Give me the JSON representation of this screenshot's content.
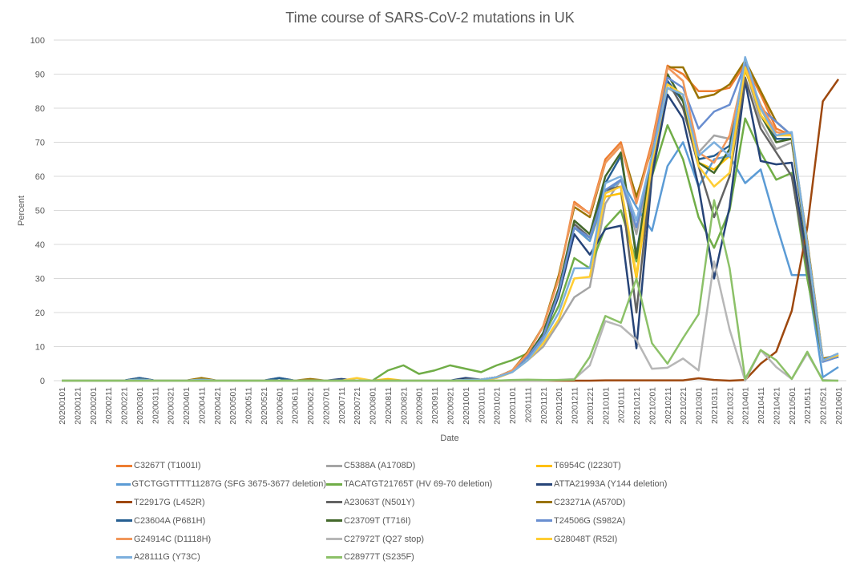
{
  "chart_data": {
    "type": "line",
    "title": "Time course of SARS-CoV-2 mutations in UK",
    "xlabel": "Date",
    "ylabel": "Percent",
    "ylim": [
      0,
      100
    ],
    "yticks": [
      0,
      10,
      20,
      30,
      40,
      50,
      60,
      70,
      80,
      90,
      100
    ],
    "grid": true,
    "legend": "bottom",
    "categories": [
      "20200101",
      "20200121",
      "20200201",
      "20200211",
      "20200221",
      "20200301",
      "20200311",
      "20200321",
      "20200401",
      "20200411",
      "20200421",
      "20200501",
      "20200511",
      "20200521",
      "20200601",
      "20200611",
      "20200621",
      "20200701",
      "20200711",
      "20200721",
      "20200801",
      "20200811",
      "20200821",
      "20200901",
      "20200911",
      "20200921",
      "20201001",
      "20201011",
      "20201021",
      "20201101",
      "20201111",
      "20201121",
      "20201201",
      "20201211",
      "20201221",
      "20210101",
      "20210111",
      "20210121",
      "20210201",
      "20210211",
      "20210221",
      "20210301",
      "20210311",
      "20210321",
      "20210401",
      "20210411",
      "20210421",
      "20210501",
      "20210511",
      "20210521",
      "20210601"
    ],
    "series": [
      {
        "name": "C3267T (T1001I)",
        "color": "#ED7D31",
        "values": [
          0,
          0,
          0,
          0,
          0,
          0.5,
          0,
          0,
          0,
          0.3,
          0,
          0,
          0,
          0,
          0,
          0,
          0,
          0,
          0,
          0,
          0,
          0,
          0,
          0,
          0,
          0,
          0.2,
          0.3,
          1,
          3,
          8,
          16,
          30,
          52.5,
          49,
          65,
          70,
          53,
          70,
          92.5,
          90,
          85,
          85,
          86,
          93,
          84,
          74,
          72,
          40,
          6,
          7.5
        ]
      },
      {
        "name": "C5388A (A1708D)",
        "color": "#A5A5A5",
        "values": [
          0,
          0,
          0,
          0,
          0,
          0.5,
          0,
          0,
          0,
          0.3,
          0,
          0,
          0,
          0,
          0,
          0,
          0,
          0,
          0,
          0,
          0,
          0,
          0,
          0,
          0,
          0,
          0.2,
          0.3,
          0.8,
          2.5,
          6,
          10,
          17,
          24.5,
          27.5,
          52,
          59,
          43,
          65,
          86,
          83,
          67,
          72,
          71,
          92,
          76,
          68,
          70,
          38,
          6,
          8
        ]
      },
      {
        "name": "T6954C (I2230T)",
        "color": "#FFC000",
        "values": [
          0,
          0,
          0,
          0,
          0,
          0.5,
          0,
          0,
          0,
          0.3,
          0,
          0,
          0,
          0,
          0,
          0,
          0,
          0,
          0,
          0,
          0,
          0.5,
          0,
          0,
          0,
          0,
          0.2,
          0.3,
          1,
          3,
          7,
          14,
          27,
          45,
          41,
          54,
          55,
          30,
          62,
          86,
          84,
          64,
          62,
          66,
          91,
          80,
          71,
          71,
          39,
          6,
          7.5
        ]
      },
      {
        "name": "GTCTGGTTTT11287G (SFG 3675-3677 deletion)",
        "color": "#5B9BD5",
        "values": [
          0,
          0,
          0,
          0,
          0,
          0.5,
          0,
          0,
          0,
          0.3,
          0,
          0,
          0,
          0,
          0,
          0,
          0,
          0,
          0,
          0,
          0,
          0,
          0,
          0,
          0,
          0,
          0.2,
          0.3,
          1,
          2.5,
          6,
          13,
          25,
          45,
          41,
          55,
          59,
          51,
          44,
          63,
          70,
          57,
          65,
          66,
          58,
          62,
          46,
          31,
          31,
          1,
          4
        ]
      },
      {
        "name": "TACATGT21765T (HV 69-70 deletion)",
        "color": "#70AD47",
        "values": [
          0,
          0,
          0,
          0,
          0,
          0,
          0,
          0,
          0,
          0,
          0,
          0,
          0,
          0,
          0,
          0,
          0,
          0,
          0,
          0,
          0,
          3,
          4.5,
          2,
          3,
          4.5,
          3.5,
          2.5,
          4.5,
          6,
          8,
          13,
          22,
          36,
          33,
          45,
          50,
          35,
          60,
          75,
          65,
          48,
          39,
          50,
          77,
          67,
          59,
          61,
          30,
          6,
          7
        ]
      },
      {
        "name": "ATTA21993A (Y144 deletion)",
        "color": "#264478",
        "values": [
          0,
          0,
          0,
          0,
          0,
          0.8,
          0,
          0,
          0,
          0.3,
          0,
          0,
          0,
          0,
          0.8,
          0,
          0,
          0,
          0.5,
          0,
          0,
          0,
          0,
          0,
          0,
          0,
          0.8,
          0.3,
          1,
          3,
          7,
          13,
          25,
          43,
          37,
          44.5,
          45.5,
          9.5,
          60,
          84,
          77,
          57,
          30,
          51,
          88,
          64.5,
          63.5,
          64,
          35,
          6,
          7
        ]
      },
      {
        "name": "T22917G (L452R)",
        "color": "#9E480E",
        "values": [
          0,
          0,
          0,
          0,
          0,
          0,
          0,
          0,
          0,
          0,
          0,
          0,
          0,
          0,
          0,
          0,
          0,
          0,
          0,
          0,
          0,
          0,
          0,
          0,
          0,
          0,
          0,
          0,
          0,
          0,
          0,
          0,
          0,
          0,
          0,
          0.1,
          0.1,
          0.1,
          0.1,
          0.1,
          0.1,
          0.7,
          0.2,
          0,
          0.2,
          5,
          8.5,
          20.5,
          45,
          82,
          88.5
        ]
      },
      {
        "name": "A23063T (N501Y)",
        "color": "#636363",
        "values": [
          0,
          0,
          0,
          0,
          0,
          0.3,
          0,
          0,
          0,
          0.3,
          0,
          0,
          0,
          0,
          0,
          0,
          0,
          0,
          0,
          0,
          0,
          0,
          0,
          0,
          0,
          0,
          0.2,
          0.3,
          1,
          3,
          7,
          14,
          27,
          46,
          42,
          56,
          57,
          20,
          63,
          88,
          80,
          63,
          48,
          60,
          89,
          74,
          67,
          60,
          33,
          6,
          7.5
        ]
      },
      {
        "name": "C23271A (A570D)",
        "color": "#997300",
        "values": [
          0,
          0,
          0,
          0,
          0,
          0.3,
          0,
          0,
          0,
          0.8,
          0,
          0,
          0,
          0,
          0,
          0,
          0.5,
          0,
          0,
          0,
          0,
          0,
          0,
          0,
          0,
          0,
          0.2,
          0.3,
          1,
          3,
          8.5,
          16,
          31,
          51,
          48,
          64,
          69,
          54,
          68,
          92,
          92,
          83,
          84,
          87,
          94,
          85,
          76,
          72,
          41,
          6.5,
          7.5
        ]
      },
      {
        "name": "C23604A (P681H)",
        "color": "#255E91",
        "values": [
          0,
          0,
          0,
          0,
          0,
          0.8,
          0,
          0,
          0,
          0.3,
          0,
          0,
          0,
          0,
          0.8,
          0,
          0,
          0,
          0,
          0,
          0,
          0,
          0,
          0,
          0,
          0,
          0.2,
          0.3,
          1,
          3,
          7,
          14,
          27,
          45,
          42,
          58,
          66,
          37,
          65,
          88,
          82,
          65,
          66,
          69,
          92,
          78,
          71,
          71,
          38,
          6,
          7
        ]
      },
      {
        "name": "C23709T (T716I)",
        "color": "#43682B",
        "values": [
          0,
          0,
          0,
          0,
          0,
          0.3,
          0,
          0,
          0,
          0.3,
          0,
          0,
          0,
          0,
          0,
          0,
          0,
          0,
          0,
          0,
          0,
          0,
          0,
          0,
          0,
          0,
          0.2,
          0.3,
          1,
          3,
          7,
          14,
          27,
          47,
          43,
          60,
          67,
          36,
          66,
          90,
          82,
          64,
          61,
          68,
          92,
          78,
          70,
          71,
          38,
          6,
          7
        ]
      },
      {
        "name": "T24506G (S982A)",
        "color": "#698ED0",
        "values": [
          0,
          0,
          0,
          0,
          0,
          0.3,
          0,
          0,
          0,
          0.3,
          0,
          0,
          0,
          0,
          0,
          0,
          0,
          0,
          0,
          0,
          0,
          0,
          0,
          0,
          0,
          0,
          0.2,
          0.3,
          1,
          3,
          7,
          13,
          26,
          45,
          42,
          56,
          59,
          45,
          66,
          89,
          86,
          74,
          79,
          81,
          93,
          80,
          76,
          72,
          39,
          5.5,
          7
        ]
      },
      {
        "name": "G24914C (D1118H)",
        "color": "#F1975A",
        "values": [
          0,
          0,
          0,
          0,
          0,
          0.3,
          0,
          0,
          0,
          0.3,
          0,
          0,
          0,
          0,
          0,
          0,
          0,
          0,
          0,
          0,
          0,
          0,
          0,
          0,
          0,
          0,
          0.2,
          0.3,
          1,
          3,
          8,
          16,
          30,
          52,
          49,
          64,
          69,
          52,
          69,
          92,
          88,
          67,
          64,
          72,
          92,
          81,
          73,
          72,
          40,
          6,
          7.5
        ]
      },
      {
        "name": "C27972T (Q27 stop)",
        "color": "#B7B7B7",
        "values": [
          0,
          0,
          0,
          0,
          0,
          0,
          0,
          0,
          0,
          0,
          0,
          0,
          0,
          0,
          0,
          0,
          0,
          0,
          0,
          0,
          0,
          0,
          0,
          0,
          0,
          0,
          0,
          0,
          0,
          0,
          0,
          0,
          0.2,
          0.5,
          4.5,
          17.5,
          16,
          12,
          3.5,
          3.8,
          6.5,
          3,
          35,
          15,
          0,
          9,
          4,
          0.5,
          8,
          0.2,
          0
        ]
      },
      {
        "name": "G28048T (R52I)",
        "color": "#FFCD33",
        "values": [
          0,
          0,
          0,
          0,
          0,
          0.3,
          0,
          0,
          0,
          0.3,
          0,
          0,
          0,
          0,
          0,
          0,
          0,
          0,
          0,
          0.8,
          0,
          0,
          0,
          0,
          0,
          0,
          0.2,
          0.3,
          0.8,
          2.5,
          6,
          11,
          18,
          30,
          30.5,
          55,
          57,
          31,
          64,
          87,
          84,
          63,
          57,
          61,
          92,
          78,
          72,
          72,
          40,
          6,
          7.5
        ]
      },
      {
        "name": "A28111G (Y73C)",
        "color": "#7CAFDD",
        "values": [
          0,
          0,
          0,
          0,
          0,
          0.3,
          0,
          0,
          0,
          0.3,
          0,
          0,
          0,
          0,
          0,
          0,
          0,
          0,
          0,
          0,
          0,
          0,
          0,
          0,
          0,
          0,
          0.2,
          0.3,
          1,
          2.5,
          6,
          12,
          20,
          33,
          33,
          58,
          60,
          47,
          66,
          86,
          84,
          66,
          70,
          66,
          95,
          80,
          72,
          73,
          40,
          6,
          8
        ]
      },
      {
        "name": "C28977T (S235F)",
        "color": "#8CC168",
        "values": [
          0,
          0,
          0,
          0,
          0,
          0,
          0,
          0,
          0,
          0,
          0,
          0,
          0,
          0,
          0,
          0,
          0,
          0,
          0,
          0,
          0,
          0,
          0,
          0,
          0,
          0,
          0,
          0,
          0,
          0.2,
          0.3,
          0.2,
          0.2,
          0.3,
          7,
          19,
          17,
          30,
          11,
          5,
          12.5,
          19.5,
          53,
          33,
          0.5,
          9,
          6,
          0.5,
          8.5,
          0,
          0
        ]
      }
    ]
  }
}
